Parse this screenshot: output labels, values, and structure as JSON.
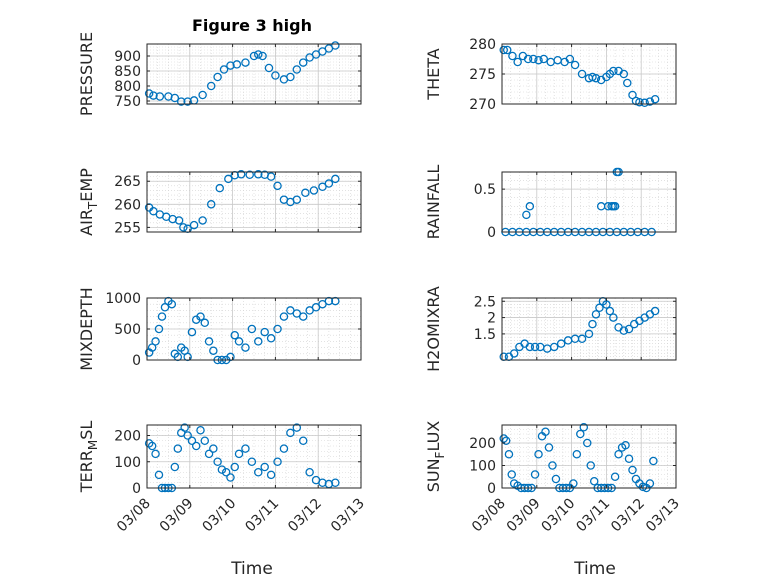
{
  "figure": {
    "title": "Figure 3 high",
    "marker_color": "#0072BD",
    "grid": true,
    "xlabel": "Time",
    "xticks": [
      "03/08",
      "03/09",
      "03/10",
      "03/11",
      "03/12",
      "03/13"
    ],
    "xlim": [
      0,
      5
    ]
  },
  "chart_data": [
    {
      "type": "scatter",
      "title": "Figure 3 high",
      "ylabel_main": "PRESSURE",
      "ylabel_sub": "",
      "ylim": [
        740,
        940
      ],
      "yticks": [
        750,
        800,
        850,
        900
      ],
      "x": [
        0.05,
        0.15,
        0.3,
        0.5,
        0.65,
        0.8,
        0.95,
        1.1,
        1.3,
        1.5,
        1.65,
        1.8,
        1.95,
        2.1,
        2.3,
        2.5,
        2.6,
        2.7,
        2.85,
        3.0,
        3.2,
        3.35,
        3.5,
        3.65,
        3.8,
        3.95,
        4.1,
        4.25,
        4.4
      ],
      "y": [
        775,
        768,
        765,
        765,
        760,
        748,
        748,
        752,
        770,
        800,
        830,
        855,
        868,
        872,
        878,
        900,
        905,
        900,
        860,
        835,
        822,
        830,
        855,
        878,
        895,
        905,
        915,
        925,
        935
      ]
    },
    {
      "type": "scatter",
      "title": "",
      "ylabel_main": "THETA",
      "ylabel_sub": "",
      "ylim": [
        270,
        280
      ],
      "yticks": [
        270,
        275,
        280
      ],
      "x": [
        0.05,
        0.15,
        0.3,
        0.45,
        0.6,
        0.75,
        0.9,
        1.05,
        1.2,
        1.4,
        1.6,
        1.8,
        1.95,
        2.1,
        2.3,
        2.5,
        2.6,
        2.7,
        2.85,
        3.0,
        3.1,
        3.2,
        3.35,
        3.5,
        3.6,
        3.75,
        3.85,
        3.95,
        4.1,
        4.25,
        4.4
      ],
      "y": [
        279,
        279,
        278,
        277,
        278,
        277.5,
        277.5,
        277.3,
        277.5,
        277,
        277.3,
        277,
        277.5,
        276.5,
        275,
        274.3,
        274.5,
        274.3,
        274,
        274.5,
        275,
        275.5,
        275.5,
        275,
        273.5,
        271.5,
        270.5,
        270.3,
        270.2,
        270.4,
        270.8
      ]
    },
    {
      "type": "scatter",
      "title": "",
      "ylabel_main": "AIR",
      "ylabel_sub": "TEMP",
      "ylim": [
        254,
        267
      ],
      "yticks": [
        255,
        260,
        265
      ],
      "x": [
        0.05,
        0.15,
        0.3,
        0.45,
        0.6,
        0.75,
        0.85,
        0.95,
        1.1,
        1.3,
        1.5,
        1.7,
        1.9,
        2.05,
        2.2,
        2.4,
        2.6,
        2.75,
        2.9,
        3.05,
        3.2,
        3.35,
        3.5,
        3.7,
        3.9,
        4.1,
        4.25,
        4.4
      ],
      "y": [
        259.3,
        258.5,
        257.8,
        257.3,
        256.8,
        256.5,
        255,
        254.7,
        255.5,
        256.5,
        260,
        263.5,
        265.5,
        266.3,
        266.5,
        266.4,
        266.5,
        266.4,
        266,
        264,
        261,
        260.5,
        261,
        262.5,
        263,
        263.8,
        264.5,
        265.5
      ]
    },
    {
      "type": "scatter",
      "title": "",
      "ylabel_main": "RAINFALL",
      "ylabel_sub": "",
      "ylim": [
        0,
        0.7
      ],
      "yticks": [
        0,
        0.5
      ],
      "x": [
        0.1,
        0.3,
        0.5,
        0.7,
        0.9,
        1.1,
        1.3,
        1.5,
        1.7,
        1.9,
        2.1,
        2.3,
        2.5,
        2.7,
        2.9,
        3.1,
        3.3,
        3.5,
        3.7,
        3.9,
        4.1,
        4.3,
        0.7,
        0.8,
        2.85,
        3.05,
        3.15,
        3.2,
        3.25,
        3.3,
        3.35
      ],
      "y": [
        0,
        0,
        0,
        0,
        0,
        0,
        0,
        0,
        0,
        0,
        0,
        0,
        0,
        0,
        0,
        0,
        0,
        0,
        0,
        0,
        0,
        0,
        0.2,
        0.3,
        0.3,
        0.3,
        0.3,
        0.3,
        0.3,
        0.7,
        0.7
      ]
    },
    {
      "type": "scatter",
      "title": "",
      "ylabel_main": "MIXDEPTH",
      "ylabel_sub": "",
      "ylim": [
        0,
        1000
      ],
      "yticks": [
        0,
        500,
        1000
      ],
      "x": [
        0.05,
        0.12,
        0.2,
        0.28,
        0.35,
        0.42,
        0.5,
        0.58,
        0.65,
        0.72,
        0.8,
        0.88,
        0.95,
        1.05,
        1.15,
        1.25,
        1.35,
        1.45,
        1.55,
        1.65,
        1.75,
        1.85,
        1.95,
        2.05,
        2.15,
        2.3,
        2.45,
        2.6,
        2.75,
        2.9,
        3.05,
        3.2,
        3.35,
        3.5,
        3.65,
        3.8,
        3.95,
        4.1,
        4.25,
        4.4
      ],
      "y": [
        120,
        200,
        300,
        500,
        700,
        850,
        950,
        900,
        100,
        50,
        200,
        150,
        50,
        450,
        650,
        700,
        600,
        300,
        150,
        0,
        0,
        0,
        50,
        400,
        300,
        200,
        500,
        300,
        450,
        350,
        500,
        700,
        800,
        750,
        700,
        800,
        850,
        900,
        950,
        950
      ]
    },
    {
      "type": "scatter",
      "title": "",
      "ylabel_main": "H2OMIXRA",
      "ylabel_sub": "",
      "ylim": [
        0.7,
        2.6
      ],
      "yticks": [
        1.5,
        2,
        2.5
      ],
      "x": [
        0.05,
        0.2,
        0.35,
        0.5,
        0.65,
        0.8,
        0.95,
        1.1,
        1.3,
        1.5,
        1.7,
        1.9,
        2.1,
        2.3,
        2.5,
        2.6,
        2.7,
        2.8,
        2.9,
        3.0,
        3.1,
        3.2,
        3.35,
        3.5,
        3.65,
        3.8,
        3.95,
        4.1,
        4.25,
        4.4
      ],
      "y": [
        0.8,
        0.8,
        0.9,
        1.1,
        1.2,
        1.1,
        1.1,
        1.1,
        1.05,
        1.1,
        1.2,
        1.3,
        1.35,
        1.35,
        1.5,
        1.8,
        2.1,
        2.3,
        2.5,
        2.4,
        2.2,
        2.0,
        1.7,
        1.6,
        1.65,
        1.8,
        1.9,
        2.0,
        2.1,
        2.2
      ]
    },
    {
      "type": "scatter",
      "title": "",
      "ylabel_main": "TERR",
      "ylabel_sub": "MSL",
      "ylim": [
        0,
        240
      ],
      "yticks": [
        0,
        100,
        200
      ],
      "x": [
        0.05,
        0.12,
        0.2,
        0.28,
        0.35,
        0.42,
        0.5,
        0.58,
        0.65,
        0.72,
        0.8,
        0.88,
        0.95,
        1.05,
        1.15,
        1.25,
        1.35,
        1.45,
        1.55,
        1.65,
        1.75,
        1.85,
        1.95,
        2.05,
        2.15,
        2.3,
        2.45,
        2.6,
        2.75,
        2.9,
        3.05,
        3.2,
        3.35,
        3.5,
        3.65,
        3.8,
        3.95,
        4.1,
        4.25,
        4.4
      ],
      "y": [
        170,
        160,
        130,
        50,
        0,
        0,
        0,
        0,
        80,
        150,
        210,
        230,
        200,
        180,
        160,
        220,
        180,
        130,
        150,
        100,
        70,
        60,
        40,
        80,
        130,
        150,
        100,
        60,
        80,
        50,
        100,
        150,
        210,
        230,
        180,
        60,
        30,
        20,
        15,
        20
      ]
    },
    {
      "type": "scatter",
      "title": "",
      "ylabel_main": "SUN",
      "ylabel_sub": "FLUX",
      "ylim": [
        0,
        280
      ],
      "yticks": [
        0,
        100,
        200
      ],
      "x": [
        0.05,
        0.12,
        0.2,
        0.28,
        0.35,
        0.45,
        0.55,
        0.65,
        0.75,
        0.85,
        0.95,
        1.05,
        1.15,
        1.25,
        1.35,
        1.45,
        1.55,
        1.65,
        1.75,
        1.85,
        1.95,
        2.05,
        2.15,
        2.25,
        2.35,
        2.45,
        2.55,
        2.65,
        2.75,
        2.85,
        2.95,
        3.05,
        3.15,
        3.25,
        3.35,
        3.45,
        3.55,
        3.65,
        3.75,
        3.85,
        3.95,
        4.05,
        4.15,
        4.25,
        4.35
      ],
      "y": [
        220,
        210,
        150,
        60,
        20,
        10,
        0,
        0,
        0,
        0,
        60,
        150,
        230,
        250,
        180,
        100,
        40,
        0,
        0,
        0,
        0,
        20,
        150,
        240,
        270,
        200,
        100,
        30,
        0,
        0,
        0,
        0,
        0,
        50,
        150,
        180,
        190,
        130,
        80,
        40,
        20,
        5,
        0,
        20,
        120
      ]
    }
  ]
}
